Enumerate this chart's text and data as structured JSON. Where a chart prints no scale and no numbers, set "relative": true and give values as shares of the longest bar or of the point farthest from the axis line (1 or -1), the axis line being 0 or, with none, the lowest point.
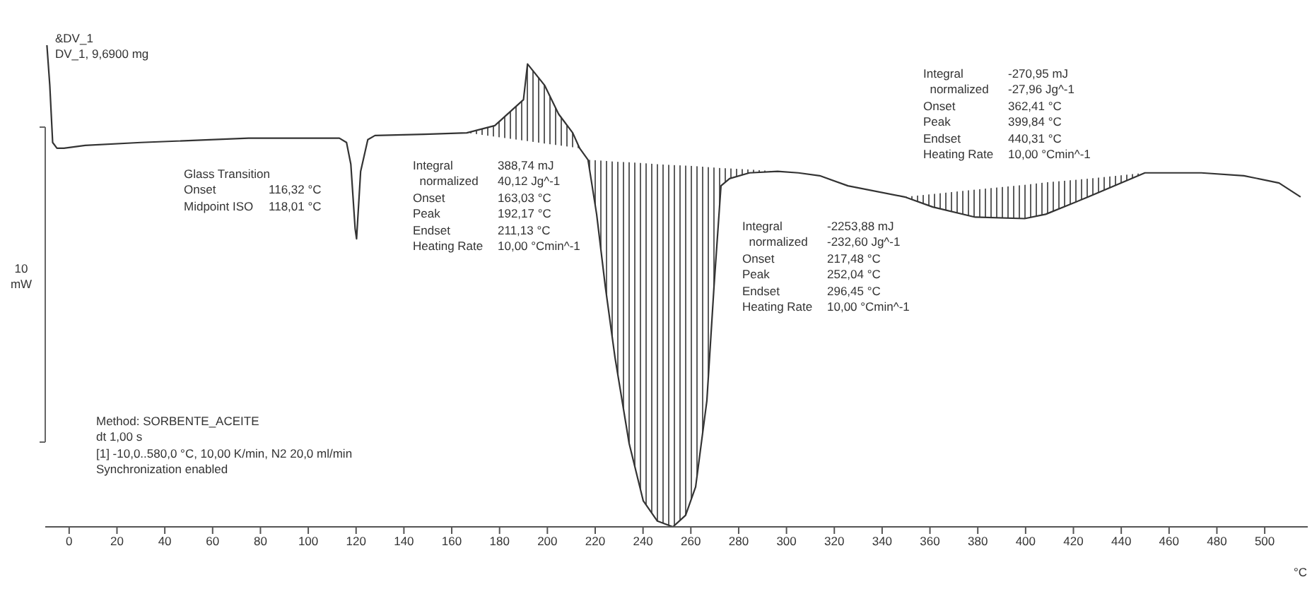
{
  "chart_data": {
    "type": "line",
    "relative": true,
    "xlabel": "°C",
    "ylabel": "10 mW",
    "tick_labels": "x",
    "xlim": [
      -10,
      518
    ],
    "xticks": [
      0,
      20,
      40,
      60,
      80,
      100,
      120,
      140,
      160,
      180,
      200,
      220,
      240,
      260,
      280,
      300,
      320,
      340,
      360,
      380,
      400,
      420,
      440,
      460,
      480,
      500
    ],
    "x": [
      -9.3,
      -8.1,
      -6.9,
      -5.1,
      -2.2,
      6.7,
      30,
      75,
      113,
      116,
      117.8,
      119.6,
      120.2,
      121.9,
      124.9,
      127.9,
      148.6,
      166.3,
      178,
      190,
      191.7,
      198.8,
      204.7,
      210.6,
      213.5,
      217,
      220.6,
      224.2,
      228.3,
      234.2,
      240.1,
      246,
      252.5,
      257.8,
      262,
      266.7,
      269.7,
      272.6,
      276.2,
      284.5,
      296.3,
      305,
      313.9,
      325.7,
      349.4,
      361.2,
      378.9,
      399.6,
      408.4,
      426.2,
      449.9,
      473.5,
      491.3,
      506,
      515
    ],
    "series": [
      {
        "color": "#333333",
        "values": [
          1,
          0.917,
          0.798,
          0.786,
          0.786,
          0.792,
          0.798,
          0.807,
          0.807,
          0.798,
          0.753,
          0.619,
          0.598,
          0.738,
          0.804,
          0.8125,
          0.815,
          0.818,
          0.833,
          0.887,
          0.961,
          0.917,
          0.857,
          0.818,
          0.786,
          0.762,
          0.649,
          0.5,
          0.351,
          0.173,
          0.054,
          0.012,
          0,
          0.024,
          0.083,
          0.262,
          0.5,
          0.708,
          0.723,
          0.735,
          0.738,
          0.735,
          0.729,
          0.708,
          0.685,
          0.664,
          0.643,
          0.64,
          0.649,
          0.685,
          0.735,
          0.735,
          0.729,
          0.714,
          0.685
        ],
        "lower": [
          null,
          null,
          null,
          null,
          null,
          null,
          null,
          null,
          null,
          null,
          null,
          null,
          null,
          null,
          null,
          null,
          null,
          0.818,
          0.81,
          0.802,
          0.801,
          0.796,
          0.792,
          0.788,
          0.786,
          0.762,
          0.649,
          0.5,
          0.351,
          0.173,
          0.054,
          0.012,
          0,
          0.024,
          0.083,
          0.262,
          0.5,
          0.708,
          0.723,
          0.735,
          0.738,
          null,
          null,
          null,
          0.685,
          0.664,
          0.643,
          0.64,
          0.649,
          0.685,
          0.735,
          null,
          null,
          null,
          null
        ],
        "upper": [
          null,
          null,
          null,
          null,
          null,
          null,
          null,
          null,
          null,
          null,
          null,
          null,
          null,
          null,
          null,
          null,
          null,
          0.818,
          0.833,
          0.887,
          0.961,
          0.917,
          0.857,
          0.818,
          0.786,
          0.762,
          0.761,
          0.76,
          0.758,
          0.757,
          0.755,
          0.753,
          0.751,
          0.75,
          0.749,
          0.747,
          0.746,
          0.745,
          0.744,
          0.742,
          0.738,
          null,
          null,
          null,
          0.685,
          0.691,
          0.7,
          0.71,
          0.715,
          0.723,
          0.735,
          null,
          null,
          null,
          null
        ]
      }
    ],
    "annotations": [
      "&DV_1\nDV_1, 9,6900 mg",
      "Glass Transition\nOnset\t116,32 °C\nMidpoint ISO\t118,01 °C",
      "Integral\t388,74 mJ\n  normalized\t40,12 Jg^-1\nOnset\t163,03 °C\nPeak\t192,17 °C\nEndset\t211,13 °C\nHeating Rate\t10,00 °Cmin^-1",
      "Integral\t-2253,88 mJ\n  normalized\t-232,60 Jg^-1\nOnset\t217,48 °C\nPeak\t252,04 °C\nEndset\t296,45 °C\nHeating Rate\t10,00 °Cmin^-1",
      "Integral\t-270,95 mJ\n  normalized\t-27,96 Jg^-1\nOnset\t362,41 °C\nPeak\t399,84 °C\nEndset\t440,31 °C\nHeating Rate\t10,00 °Cmin^-1",
      "Method: SORBENTE_ACEITE\ndt 1,00 s\n[1] -10,0..580,0 °C, 10,00 K/min, N2 20,0 ml/min\nSynchronization enabled"
    ]
  }
}
